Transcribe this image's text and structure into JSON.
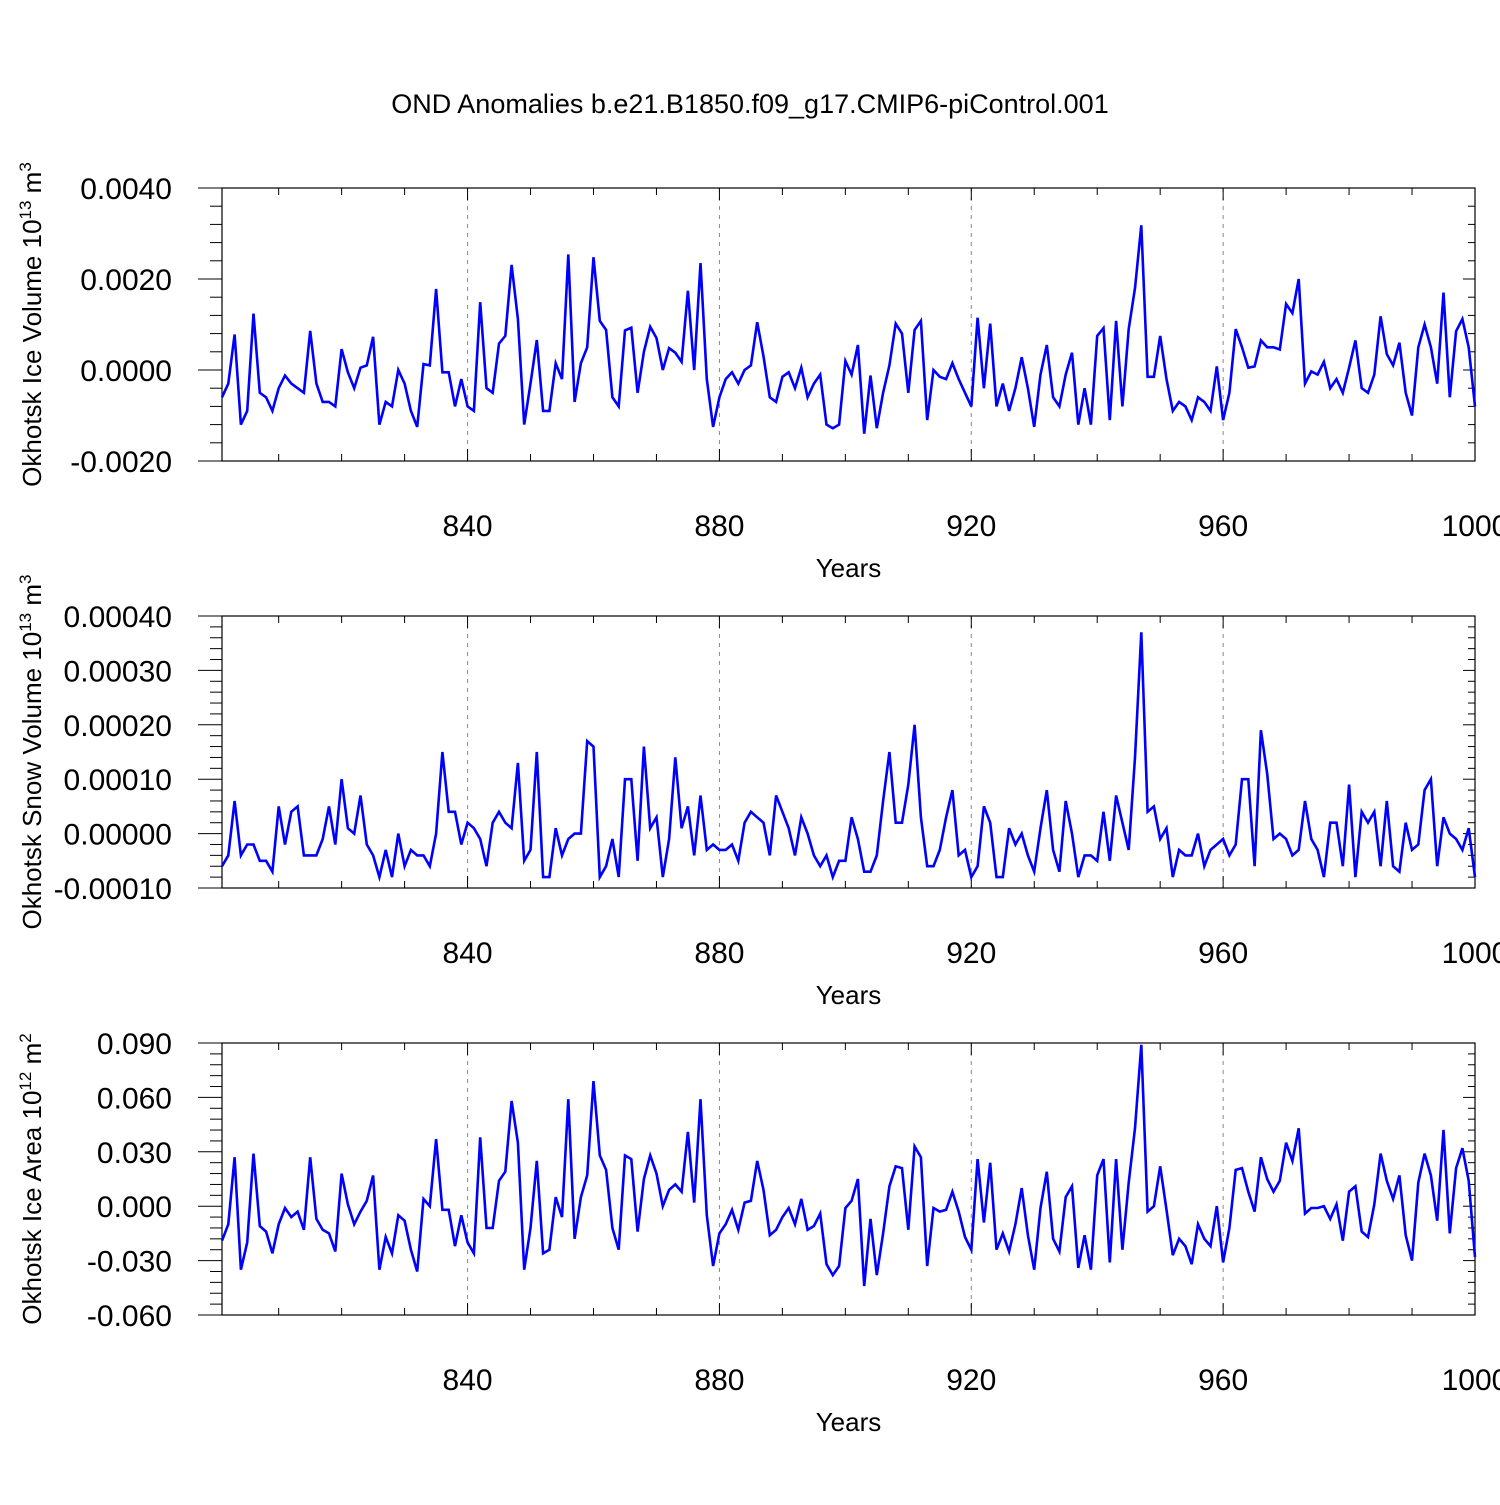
{
  "figure_title": "OND Anomalies b.e21.B1850.f09_g17.CMIP6-piControl.001",
  "series_color": "#0000ff",
  "chart_data": [
    {
      "type": "line",
      "name": "ice-volume",
      "title": "OND Anomalies b.e21.B1850.f09_g17.CMIP6-piControl.001",
      "ylabel": "Okhotsk Ice Volume",
      "ylabel_scale": "10",
      "ylabel_exp": "13",
      "ylabel_unit": "m",
      "ylabel_unit_exp": "3",
      "xlabel": "Years",
      "xlim": [
        801,
        1000
      ],
      "ylim": [
        -0.002,
        0.004
      ],
      "xticks": [
        840,
        880,
        920,
        960,
        1000
      ],
      "xtick_labels": [
        "840",
        "880",
        "920",
        "960",
        "1000"
      ],
      "yticks": [
        -0.002,
        0.0,
        0.002,
        0.004
      ],
      "ytick_labels": [
        "-0.0020",
        "0.0000",
        "0.0020",
        "0.0040"
      ],
      "x_start": 801,
      "values": [
        -0.0006,
        -0.0003,
        0.00078,
        -0.0012,
        -0.0009,
        0.00124,
        -0.0005,
        -0.0006,
        -0.0009,
        -0.0004,
        -0.00012,
        -0.0003,
        -0.0004,
        -0.0005,
        0.00086,
        -0.0003,
        -0.0007,
        -0.0007,
        -0.0008,
        0.00046,
        -5e-05,
        -0.0004,
        5e-05,
        0.0001,
        0.00073,
        -0.0012,
        -0.0007,
        -0.0008,
        0.0,
        -0.0003,
        -0.0009,
        -0.00125,
        0.00013,
        0.0001,
        0.00178,
        -5e-05,
        -5e-05,
        -0.0008,
        -0.0002,
        -0.0008,
        -0.0009,
        0.00149,
        -0.0004,
        -0.0005,
        0.00058,
        0.00075,
        0.00231,
        0.00112,
        -0.0012,
        -0.0003,
        0.00066,
        -0.0009,
        -0.0009,
        0.00015,
        -0.0002,
        0.00254,
        -0.0007,
        0.00015,
        0.0005,
        0.00248,
        0.00108,
        0.00088,
        -0.0006,
        -0.0008,
        0.00087,
        0.00093,
        -0.0005,
        0.0004,
        0.00095,
        0.0007,
        0.0,
        0.00048,
        0.00038,
        0.00018,
        0.00174,
        0.0,
        0.00235,
        -0.0002,
        -0.00125,
        -0.0006,
        -0.0002,
        -5e-05,
        -0.0003,
        0.0,
        0.0001,
        0.00105,
        0.0003,
        -0.0006,
        -0.0007,
        -0.00015,
        -5e-05,
        -0.0004,
        5e-05,
        -0.0006,
        -0.0003,
        -0.0001,
        -0.0012,
        -0.00128,
        -0.0012,
        0.0002,
        -0.0001,
        0.00055,
        -0.0014,
        -0.00012,
        -0.00128,
        -0.0005,
        0.0001,
        0.00102,
        0.0008,
        -0.0005,
        0.00088,
        0.00108,
        -0.0011,
        0.0,
        -0.00015,
        -0.0002,
        0.00015,
        -0.0002,
        -0.0005,
        -0.0008,
        0.00115,
        -0.0004,
        0.00102,
        -0.0008,
        -0.0003,
        -0.0009,
        -0.0004,
        0.00028,
        -0.0004,
        -0.00125,
        -0.0001,
        0.00055,
        -0.0006,
        -0.0008,
        -0.0001,
        0.00038,
        -0.0012,
        -0.0004,
        -0.0012,
        0.00075,
        0.00092,
        -0.0011,
        0.00108,
        -0.0008,
        0.0009,
        0.0018,
        0.00318,
        -0.00015,
        -0.00015,
        0.00075,
        -0.0002,
        -0.0009,
        -0.0007,
        -0.0008,
        -0.0011,
        -0.0006,
        -0.0007,
        -0.0009,
        8e-05,
        -0.0011,
        -0.0005,
        0.0009,
        0.0005,
        5e-05,
        8e-05,
        0.00065,
        0.0005,
        0.0005,
        0.00045,
        0.00145,
        0.00125,
        0.002,
        -0.0003,
        -3e-05,
        -0.0001,
        0.00018,
        -0.0004,
        -0.0002,
        -0.0005,
        5e-05,
        0.00065,
        -0.0004,
        -0.0005,
        -0.0001,
        0.00118,
        0.00035,
        0.0001,
        0.0006,
        -0.0005,
        -0.001,
        0.0005,
        0.001,
        0.0005,
        -0.0003,
        0.0017,
        -0.0006,
        0.00085,
        0.00112,
        0.0005,
        -0.0008
      ]
    },
    {
      "type": "line",
      "name": "snow-volume",
      "ylabel": "Okhotsk Snow Volume",
      "ylabel_scale": "10",
      "ylabel_exp": "13",
      "ylabel_unit": "m",
      "ylabel_unit_exp": "3",
      "xlabel": "Years",
      "xlim": [
        801,
        1000
      ],
      "ylim": [
        -0.0001,
        0.0004
      ],
      "xticks": [
        840,
        880,
        920,
        960,
        1000
      ],
      "xtick_labels": [
        "840",
        "880",
        "920",
        "960",
        "1000"
      ],
      "yticks": [
        -0.0001,
        0.0,
        0.0001,
        0.0002,
        0.0003,
        0.0004
      ],
      "ytick_labels": [
        "-0.00010",
        "0.00000",
        "0.00010",
        "0.00020",
        "0.00030",
        "0.00040"
      ],
      "x_start": 801,
      "values": [
        -6e-05,
        -4e-05,
        6e-05,
        -4e-05,
        -2e-05,
        -2e-05,
        -5e-05,
        -5e-05,
        -7e-05,
        5e-05,
        -2e-05,
        4e-05,
        5e-05,
        -4e-05,
        -4e-05,
        -4e-05,
        -1e-05,
        5e-05,
        -2e-05,
        0.0001,
        1e-05,
        0.0,
        7e-05,
        -2e-05,
        -4e-05,
        -8e-05,
        -3e-05,
        -8e-05,
        0.0,
        -6e-05,
        -3e-05,
        -4e-05,
        -4e-05,
        -6e-05,
        0.0,
        0.00015,
        4e-05,
        4e-05,
        -2e-05,
        2e-05,
        1e-05,
        -1e-05,
        -6e-05,
        2e-05,
        4e-05,
        2e-05,
        1e-05,
        0.00013,
        -5e-05,
        -3e-05,
        0.00015,
        -8e-05,
        -8e-05,
        1e-05,
        -4e-05,
        -1e-05,
        0.0,
        0.0,
        0.00017,
        0.00016,
        -8e-05,
        -6e-05,
        -1e-05,
        -8e-05,
        0.0001,
        0.0001,
        -5e-05,
        0.00016,
        1e-05,
        3e-05,
        -8e-05,
        -1e-05,
        0.00014,
        1e-05,
        5e-05,
        -4e-05,
        7e-05,
        -3e-05,
        -2e-05,
        -3e-05,
        -3e-05,
        -2e-05,
        -5e-05,
        2e-05,
        4e-05,
        3e-05,
        2e-05,
        -4e-05,
        7e-05,
        4e-05,
        1e-05,
        -4e-05,
        3e-05,
        0.0,
        -4e-05,
        -6e-05,
        -4e-05,
        -8e-05,
        -5e-05,
        -5e-05,
        3e-05,
        -1e-05,
        -7e-05,
        -7e-05,
        -4e-05,
        6e-05,
        0.00015,
        2e-05,
        2e-05,
        9e-05,
        0.0002,
        3e-05,
        -6e-05,
        -6e-05,
        -3e-05,
        3e-05,
        8e-05,
        -4e-05,
        -3e-05,
        -8e-05,
        -6e-05,
        5e-05,
        2e-05,
        -8e-05,
        -8e-05,
        1e-05,
        -2e-05,
        0.0,
        -4e-05,
        -7e-05,
        1e-05,
        8e-05,
        -3e-05,
        -7e-05,
        6e-05,
        0.0,
        -8e-05,
        -4e-05,
        -4e-05,
        -5e-05,
        4e-05,
        -5e-05,
        7e-05,
        2e-05,
        -3e-05,
        0.00014,
        0.00037,
        4e-05,
        5e-05,
        -1e-05,
        1e-05,
        -8e-05,
        -3e-05,
        -4e-05,
        -4e-05,
        0.0,
        -6e-05,
        -3e-05,
        -2e-05,
        -1e-05,
        -4e-05,
        -2e-05,
        0.0001,
        0.0001,
        -6e-05,
        0.00019,
        0.00011,
        -1e-05,
        0.0,
        -1e-05,
        -4e-05,
        -3e-05,
        6e-05,
        -1e-05,
        -3e-05,
        -8e-05,
        2e-05,
        2e-05,
        -6e-05,
        9e-05,
        -8e-05,
        4e-05,
        2e-05,
        4e-05,
        -6e-05,
        6e-05,
        -6e-05,
        -7e-05,
        2e-05,
        -3e-05,
        -2e-05,
        8e-05,
        0.0001,
        -6e-05,
        3e-05,
        0.0,
        -1e-05,
        -3e-05,
        1e-05,
        -8e-05
      ]
    },
    {
      "type": "line",
      "name": "ice-area",
      "ylabel": "Okhotsk Ice Area",
      "ylabel_scale": "10",
      "ylabel_exp": "12",
      "ylabel_unit": "m",
      "ylabel_unit_exp": "2",
      "xlabel": "Years",
      "xlim": [
        801,
        1000
      ],
      "ylim": [
        -0.06,
        0.09
      ],
      "xticks": [
        840,
        880,
        920,
        960,
        1000
      ],
      "xtick_labels": [
        "840",
        "880",
        "920",
        "960",
        "1000"
      ],
      "yticks": [
        -0.06,
        -0.03,
        0.0,
        0.03,
        0.06,
        0.09
      ],
      "ytick_labels": [
        "-0.060",
        "-0.030",
        "0.000",
        "0.030",
        "0.060",
        "0.090"
      ],
      "x_start": 801,
      "values": [
        -0.019,
        -0.01,
        0.027,
        -0.035,
        -0.02,
        0.029,
        -0.011,
        -0.014,
        -0.026,
        -0.01,
        -0.001,
        -0.006,
        -0.003,
        -0.013,
        0.027,
        -0.007,
        -0.013,
        -0.015,
        -0.025,
        0.018,
        0.001,
        -0.01,
        -0.003,
        0.003,
        0.017,
        -0.035,
        -0.017,
        -0.026,
        -0.005,
        -0.008,
        -0.024,
        -0.036,
        0.004,
        0.0,
        0.037,
        -0.002,
        -0.002,
        -0.022,
        -0.005,
        -0.02,
        -0.026,
        0.038,
        -0.012,
        -0.012,
        0.014,
        0.019,
        0.058,
        0.035,
        -0.035,
        -0.012,
        0.025,
        -0.026,
        -0.024,
        0.005,
        -0.006,
        0.059,
        -0.018,
        0.005,
        0.017,
        0.069,
        0.028,
        0.02,
        -0.012,
        -0.024,
        0.028,
        0.026,
        -0.014,
        0.015,
        0.028,
        0.018,
        0.0,
        0.009,
        0.012,
        0.008,
        0.041,
        0.002,
        0.059,
        -0.005,
        -0.033,
        -0.015,
        -0.01,
        -0.002,
        -0.013,
        0.002,
        0.003,
        0.025,
        0.009,
        -0.016,
        -0.013,
        -0.006,
        -0.001,
        -0.01,
        0.004,
        -0.013,
        -0.011,
        -0.004,
        -0.032,
        -0.038,
        -0.033,
        -0.001,
        0.003,
        0.015,
        -0.044,
        -0.007,
        -0.038,
        -0.015,
        0.011,
        0.022,
        0.021,
        -0.013,
        0.033,
        0.027,
        -0.033,
        -0.001,
        -0.003,
        -0.002,
        0.008,
        -0.003,
        -0.017,
        -0.024,
        0.026,
        -0.009,
        0.024,
        -0.024,
        -0.015,
        -0.025,
        -0.01,
        0.01,
        -0.016,
        -0.035,
        -0.001,
        0.019,
        -0.018,
        -0.025,
        0.005,
        0.011,
        -0.034,
        -0.016,
        -0.035,
        0.017,
        0.026,
        -0.031,
        0.026,
        -0.024,
        0.013,
        0.043,
        0.089,
        -0.003,
        0.0,
        0.022,
        -0.002,
        -0.027,
        -0.018,
        -0.022,
        -0.032,
        -0.01,
        -0.018,
        -0.022,
        0.0,
        -0.031,
        -0.012,
        0.02,
        0.021,
        0.008,
        -0.003,
        0.027,
        0.015,
        0.008,
        0.014,
        0.035,
        0.025,
        0.043,
        -0.004,
        -0.001,
        -0.001,
        0.0,
        -0.007,
        0.001,
        -0.019,
        0.008,
        0.011,
        -0.014,
        -0.017,
        0.001,
        0.029,
        0.014,
        0.004,
        0.017,
        -0.016,
        -0.03,
        0.013,
        0.029,
        0.017,
        -0.008,
        0.042,
        -0.015,
        0.021,
        0.032,
        0.014,
        -0.028
      ]
    }
  ]
}
